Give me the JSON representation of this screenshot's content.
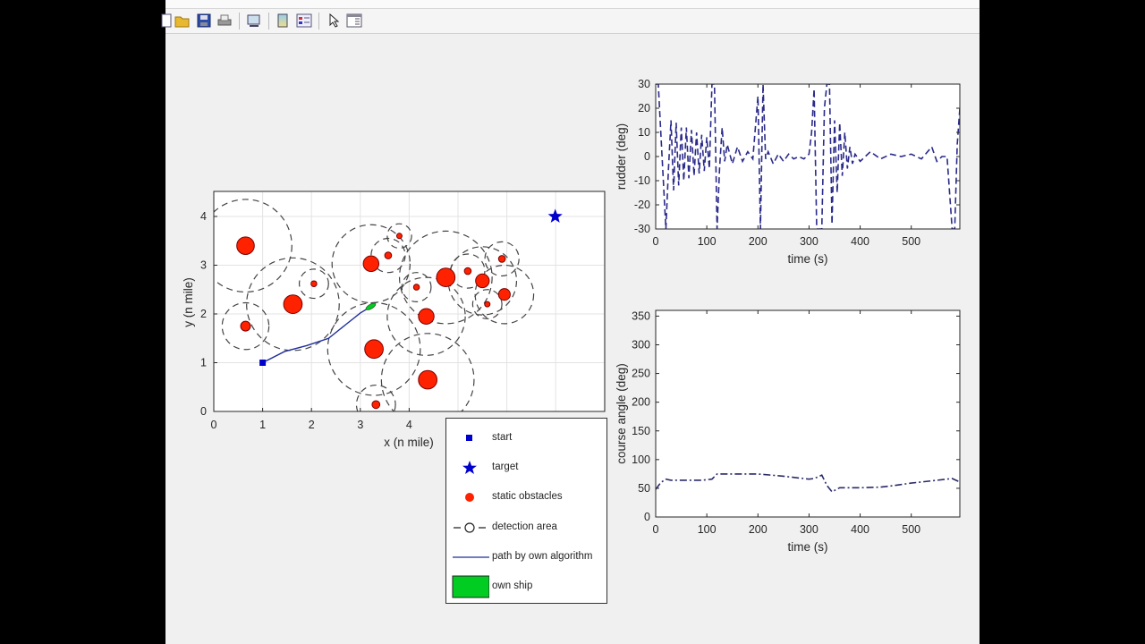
{
  "window": {
    "menubar_text": "",
    "toolbar": [
      {
        "name": "new-figure-icon",
        "tooltip": "New Figure"
      },
      {
        "name": "open-file-icon",
        "tooltip": "Open File"
      },
      {
        "name": "save-icon",
        "tooltip": "Save Figure"
      },
      {
        "name": "print-icon",
        "tooltip": "Print Figure"
      },
      {
        "name": "link-plot-icon",
        "tooltip": "Link Plot"
      },
      {
        "name": "insert-colorbar-icon",
        "tooltip": "Insert Colorbar"
      },
      {
        "name": "insert-legend-icon",
        "tooltip": "Insert Legend"
      },
      {
        "name": "edit-plot-icon",
        "tooltip": "Edit Plot"
      },
      {
        "name": "property-inspector-icon",
        "tooltip": "Open Property Inspector"
      }
    ]
  },
  "colors": {
    "obstacle_fill": "#ff2200",
    "obstacle_edge": "#7a0000",
    "path": "#1f2f9a",
    "marker": "#0000cc",
    "own_ship": "#00cc22",
    "rudder_line": "#2a2a8a",
    "course_line": "#2a2a6a"
  },
  "legend": {
    "items": [
      {
        "symbol": "blue-square",
        "label": "start"
      },
      {
        "symbol": "blue-star",
        "label": "target"
      },
      {
        "symbol": "red-circle",
        "label": "static obstacles"
      },
      {
        "symbol": "dashed-circle",
        "label": "detection area"
      },
      {
        "symbol": "blue-line",
        "label": "path by own algorithm"
      },
      {
        "symbol": "green-rect",
        "label": "own ship"
      }
    ]
  },
  "chart_data": [
    {
      "type": "scatter",
      "title": "",
      "xlabel": "x (n mile)",
      "ylabel": "y (n mile)",
      "xlim": [
        0,
        8
      ],
      "ylim": [
        0,
        4.5
      ],
      "xticks": [
        "0",
        "1",
        "2",
        "3",
        "4"
      ],
      "yticks": [
        "0",
        "1",
        "2",
        "3",
        "4"
      ],
      "grid": true,
      "start": {
        "x": 1.0,
        "y": 1.0
      },
      "target": {
        "x": 7.0,
        "y": 4.0
      },
      "static_obstacles": [
        {
          "x": 0.65,
          "y": 3.4,
          "r": 0.18,
          "detect_r": 0.95
        },
        {
          "x": 1.62,
          "y": 2.2,
          "r": 0.19,
          "detect_r": 0.95
        },
        {
          "x": 0.65,
          "y": 1.75,
          "r": 0.1,
          "detect_r": 0.48
        },
        {
          "x": 2.05,
          "y": 2.62,
          "r": 0.06,
          "detect_r": 0.3
        },
        {
          "x": 3.22,
          "y": 3.03,
          "r": 0.16,
          "detect_r": 0.8
        },
        {
          "x": 3.57,
          "y": 3.2,
          "r": 0.07,
          "detect_r": 0.35
        },
        {
          "x": 3.8,
          "y": 3.6,
          "r": 0.05,
          "detect_r": 0.25
        },
        {
          "x": 4.15,
          "y": 2.55,
          "r": 0.06,
          "detect_r": 0.3
        },
        {
          "x": 4.35,
          "y": 1.95,
          "r": 0.16,
          "detect_r": 0.8
        },
        {
          "x": 4.75,
          "y": 2.75,
          "r": 0.19,
          "detect_r": 0.95
        },
        {
          "x": 5.2,
          "y": 2.88,
          "r": 0.07,
          "detect_r": 0.35
        },
        {
          "x": 5.5,
          "y": 2.68,
          "r": 0.14,
          "detect_r": 0.7
        },
        {
          "x": 5.6,
          "y": 2.2,
          "r": 0.05,
          "detect_r": 0.3
        },
        {
          "x": 5.95,
          "y": 2.4,
          "r": 0.12,
          "detect_r": 0.6
        },
        {
          "x": 5.9,
          "y": 3.13,
          "r": 0.07,
          "detect_r": 0.35
        },
        {
          "x": 3.28,
          "y": 1.28,
          "r": 0.19,
          "detect_r": 0.95
        },
        {
          "x": 4.38,
          "y": 0.65,
          "r": 0.19,
          "detect_r": 0.95
        },
        {
          "x": 3.32,
          "y": 0.14,
          "r": 0.08,
          "detect_r": 0.4
        }
      ],
      "path": {
        "x": [
          1.0,
          1.45,
          1.9,
          2.35,
          2.7,
          3.0,
          3.25
        ],
        "y": [
          1.0,
          1.23,
          1.35,
          1.5,
          1.78,
          2.02,
          2.17
        ]
      },
      "own_ship": {
        "x": 3.25,
        "y": 2.17
      }
    },
    {
      "type": "line",
      "title": "",
      "xlabel": "time (s)",
      "ylabel": "rudder (deg)",
      "xlim": [
        0,
        595
      ],
      "ylim": [
        -30,
        30
      ],
      "xticks": [
        "0",
        "100",
        "200",
        "300",
        "400",
        "500"
      ],
      "yticks": [
        "-30",
        "-20",
        "-10",
        "0",
        "10",
        "20",
        "30"
      ],
      "grid": false,
      "line_style": "dashed",
      "series": [
        {
          "name": "rudder",
          "x": [
            0,
            5,
            10,
            20,
            25,
            30,
            35,
            40,
            45,
            50,
            55,
            60,
            65,
            70,
            75,
            80,
            85,
            90,
            95,
            100,
            105,
            110,
            115,
            120,
            125,
            130,
            135,
            140,
            150,
            160,
            170,
            180,
            190,
            200,
            205,
            210,
            215,
            220,
            230,
            240,
            250,
            260,
            270,
            280,
            290,
            300,
            305,
            310,
            315,
            320,
            325,
            330,
            335,
            340,
            345,
            350,
            355,
            360,
            365,
            370,
            375,
            380,
            385,
            390,
            400,
            420,
            440,
            460,
            480,
            500,
            520,
            540,
            550,
            560,
            570,
            580,
            585,
            590,
            595
          ],
          "y": [
            30,
            30,
            10,
            -30,
            -5,
            15,
            -14,
            14,
            -12,
            12,
            -10,
            12,
            -9,
            11,
            -8,
            10,
            -7,
            9,
            -6,
            8,
            -5,
            30,
            30,
            -30,
            -5,
            12,
            -2,
            5,
            -3,
            4,
            -2,
            2,
            -1,
            25,
            -30,
            30,
            -1,
            2,
            -3,
            1,
            -2,
            1,
            -1,
            0,
            -1,
            1,
            10,
            28,
            -30,
            -30,
            -30,
            20,
            30,
            30,
            -28,
            15,
            -15,
            14,
            -8,
            10,
            -5,
            4,
            -3,
            1,
            -2,
            2,
            -1,
            1,
            0,
            1,
            -1,
            4,
            -2,
            0,
            0,
            -30,
            -30,
            5,
            20
          ]
        }
      ]
    },
    {
      "type": "line",
      "title": "",
      "xlabel": "time (s)",
      "ylabel": "course angle (deg)",
      "xlim": [
        0,
        595
      ],
      "ylim": [
        0,
        360
      ],
      "xticks": [
        "0",
        "100",
        "200",
        "300",
        "400",
        "500"
      ],
      "yticks": [
        "0",
        "50",
        "100",
        "150",
        "200",
        "250",
        "300",
        "350"
      ],
      "grid": false,
      "line_style": "dashdot",
      "series": [
        {
          "name": "course",
          "x": [
            0,
            10,
            20,
            30,
            60,
            90,
            110,
            120,
            150,
            200,
            250,
            300,
            310,
            325,
            335,
            345,
            360,
            400,
            440,
            460,
            500,
            540,
            580,
            595
          ],
          "y": [
            48,
            60,
            66,
            64,
            64,
            64,
            66,
            75,
            75,
            75,
            71,
            66,
            67,
            73,
            55,
            44,
            51,
            51,
            52,
            54,
            59,
            63,
            67,
            61
          ]
        }
      ]
    }
  ]
}
